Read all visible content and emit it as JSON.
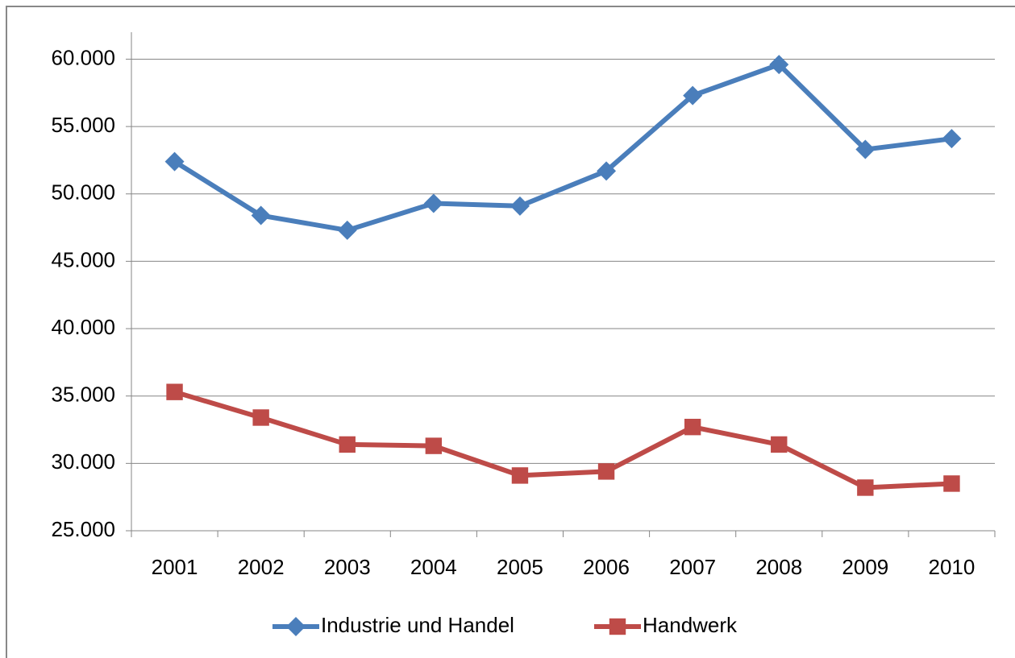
{
  "chart_data": {
    "type": "line",
    "categories": [
      "2001",
      "2002",
      "2003",
      "2004",
      "2005",
      "2006",
      "2007",
      "2008",
      "2009",
      "2010"
    ],
    "series": [
      {
        "name": "Industrie und Handel",
        "color": "#4a7ebb",
        "marker": "diamond",
        "values": [
          52400,
          48400,
          47300,
          49300,
          49100,
          51700,
          57300,
          59600,
          53300,
          54100
        ]
      },
      {
        "name": "Handwerk",
        "color": "#be4b48",
        "marker": "square",
        "values": [
          35300,
          33400,
          31400,
          31300,
          29100,
          29400,
          32700,
          31400,
          28200,
          28500
        ]
      }
    ],
    "ylim": [
      25000,
      62000
    ],
    "yticks": [
      {
        "value": 25000,
        "label": "25.000"
      },
      {
        "value": 30000,
        "label": "30.000"
      },
      {
        "value": 35000,
        "label": "35.000"
      },
      {
        "value": 40000,
        "label": "40.000"
      },
      {
        "value": 45000,
        "label": "45.000"
      },
      {
        "value": 50000,
        "label": "50.000"
      },
      {
        "value": 55000,
        "label": "55.000"
      },
      {
        "value": 60000,
        "label": "60.000"
      }
    ],
    "grid": true,
    "legend": "bottom"
  }
}
